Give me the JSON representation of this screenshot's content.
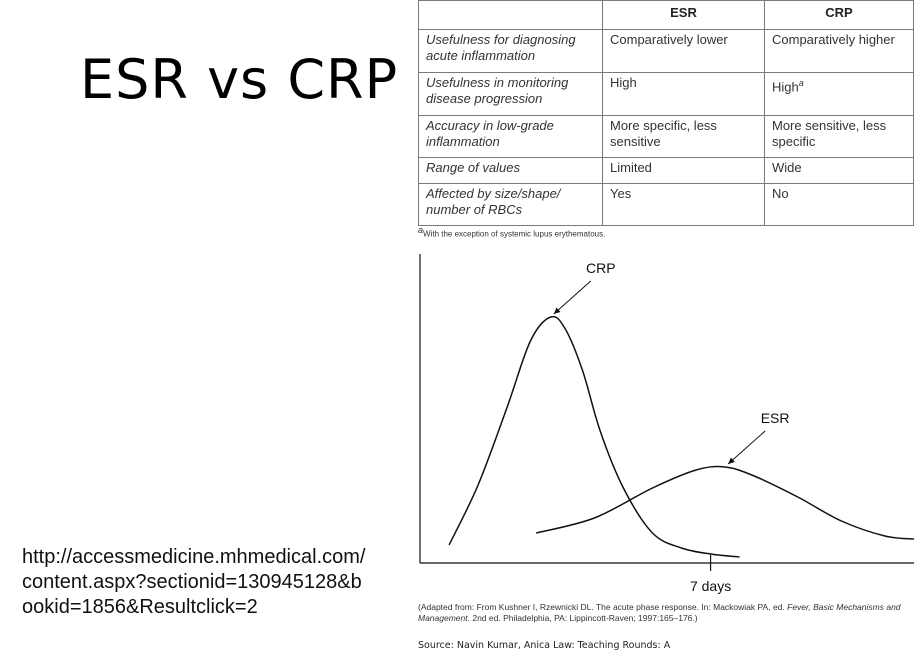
{
  "slide": {
    "title": "ESR vs CRP",
    "url_text": "http://accessmedicine.mhmedical.com/content.aspx?sectionid=130945128&bookid=1856&Resultclick=2"
  },
  "table": {
    "headers": [
      "",
      "ESR",
      "CRP"
    ],
    "rows": [
      {
        "label": "Usefulness for diagnosing acute inflammation",
        "esr": "Comparatively lower",
        "crp": "Comparatively higher"
      },
      {
        "label": "Usefulness in monitoring disease progression",
        "esr": "High",
        "crp": "High",
        "crp_sup": "a"
      },
      {
        "label": "Accuracy in low-grade inflammation",
        "esr": "More specific, less sensitive",
        "crp": "More sensitive, less specific"
      },
      {
        "label": "Range of values",
        "esr": "Limited",
        "crp": "Wide"
      },
      {
        "label": "Affected by size/shape/ number of RBCs",
        "esr": "Yes",
        "crp": "No"
      }
    ],
    "footnote_sup": "a",
    "footnote": "With the exception of systemic lupus erythematous."
  },
  "chart_data": {
    "type": "line",
    "series": [
      {
        "name": "CRP",
        "x": [
          -2.0,
          -1.0,
          0.0,
          0.8,
          1.5,
          2.0,
          2.6,
          3.2,
          4.0,
          5.0,
          6.0,
          7.0,
          8.0
        ],
        "y": [
          0.06,
          0.26,
          0.52,
          0.74,
          0.82,
          0.78,
          0.64,
          0.44,
          0.25,
          0.1,
          0.05,
          0.03,
          0.02
        ]
      },
      {
        "name": "ESR",
        "x": [
          1.0,
          3.0,
          5.0,
          6.5,
          7.5,
          8.5,
          10.0,
          11.5,
          13.0,
          14.0
        ],
        "y": [
          0.1,
          0.15,
          0.25,
          0.31,
          0.32,
          0.29,
          0.22,
          0.14,
          0.09,
          0.08
        ]
      }
    ],
    "x_ticks": [
      {
        "x": 7,
        "label": "7 days"
      }
    ],
    "xlim": [
      -3,
      14
    ],
    "ylim": [
      0,
      1
    ],
    "xlabel": "",
    "ylabel": "",
    "labels": [
      {
        "series": "CRP",
        "text": "CRP"
      },
      {
        "series": "ESR",
        "text": "ESR"
      }
    ],
    "color": "#111111"
  },
  "caption": {
    "prefix": "(Adapted from: From Kushner I, Rzewnicki DL. The acute phase response. In: Mackowiak PA, ed. ",
    "book_title": "Fever, Basic Mechanisms and Management",
    "suffix": ". 2nd ed. Philadelphia, PA: Lippincott-Raven; 1997:165–176.)"
  },
  "source": {
    "text": "Source: Navin Kumar, Anica Law: Teaching Rounds: A"
  }
}
